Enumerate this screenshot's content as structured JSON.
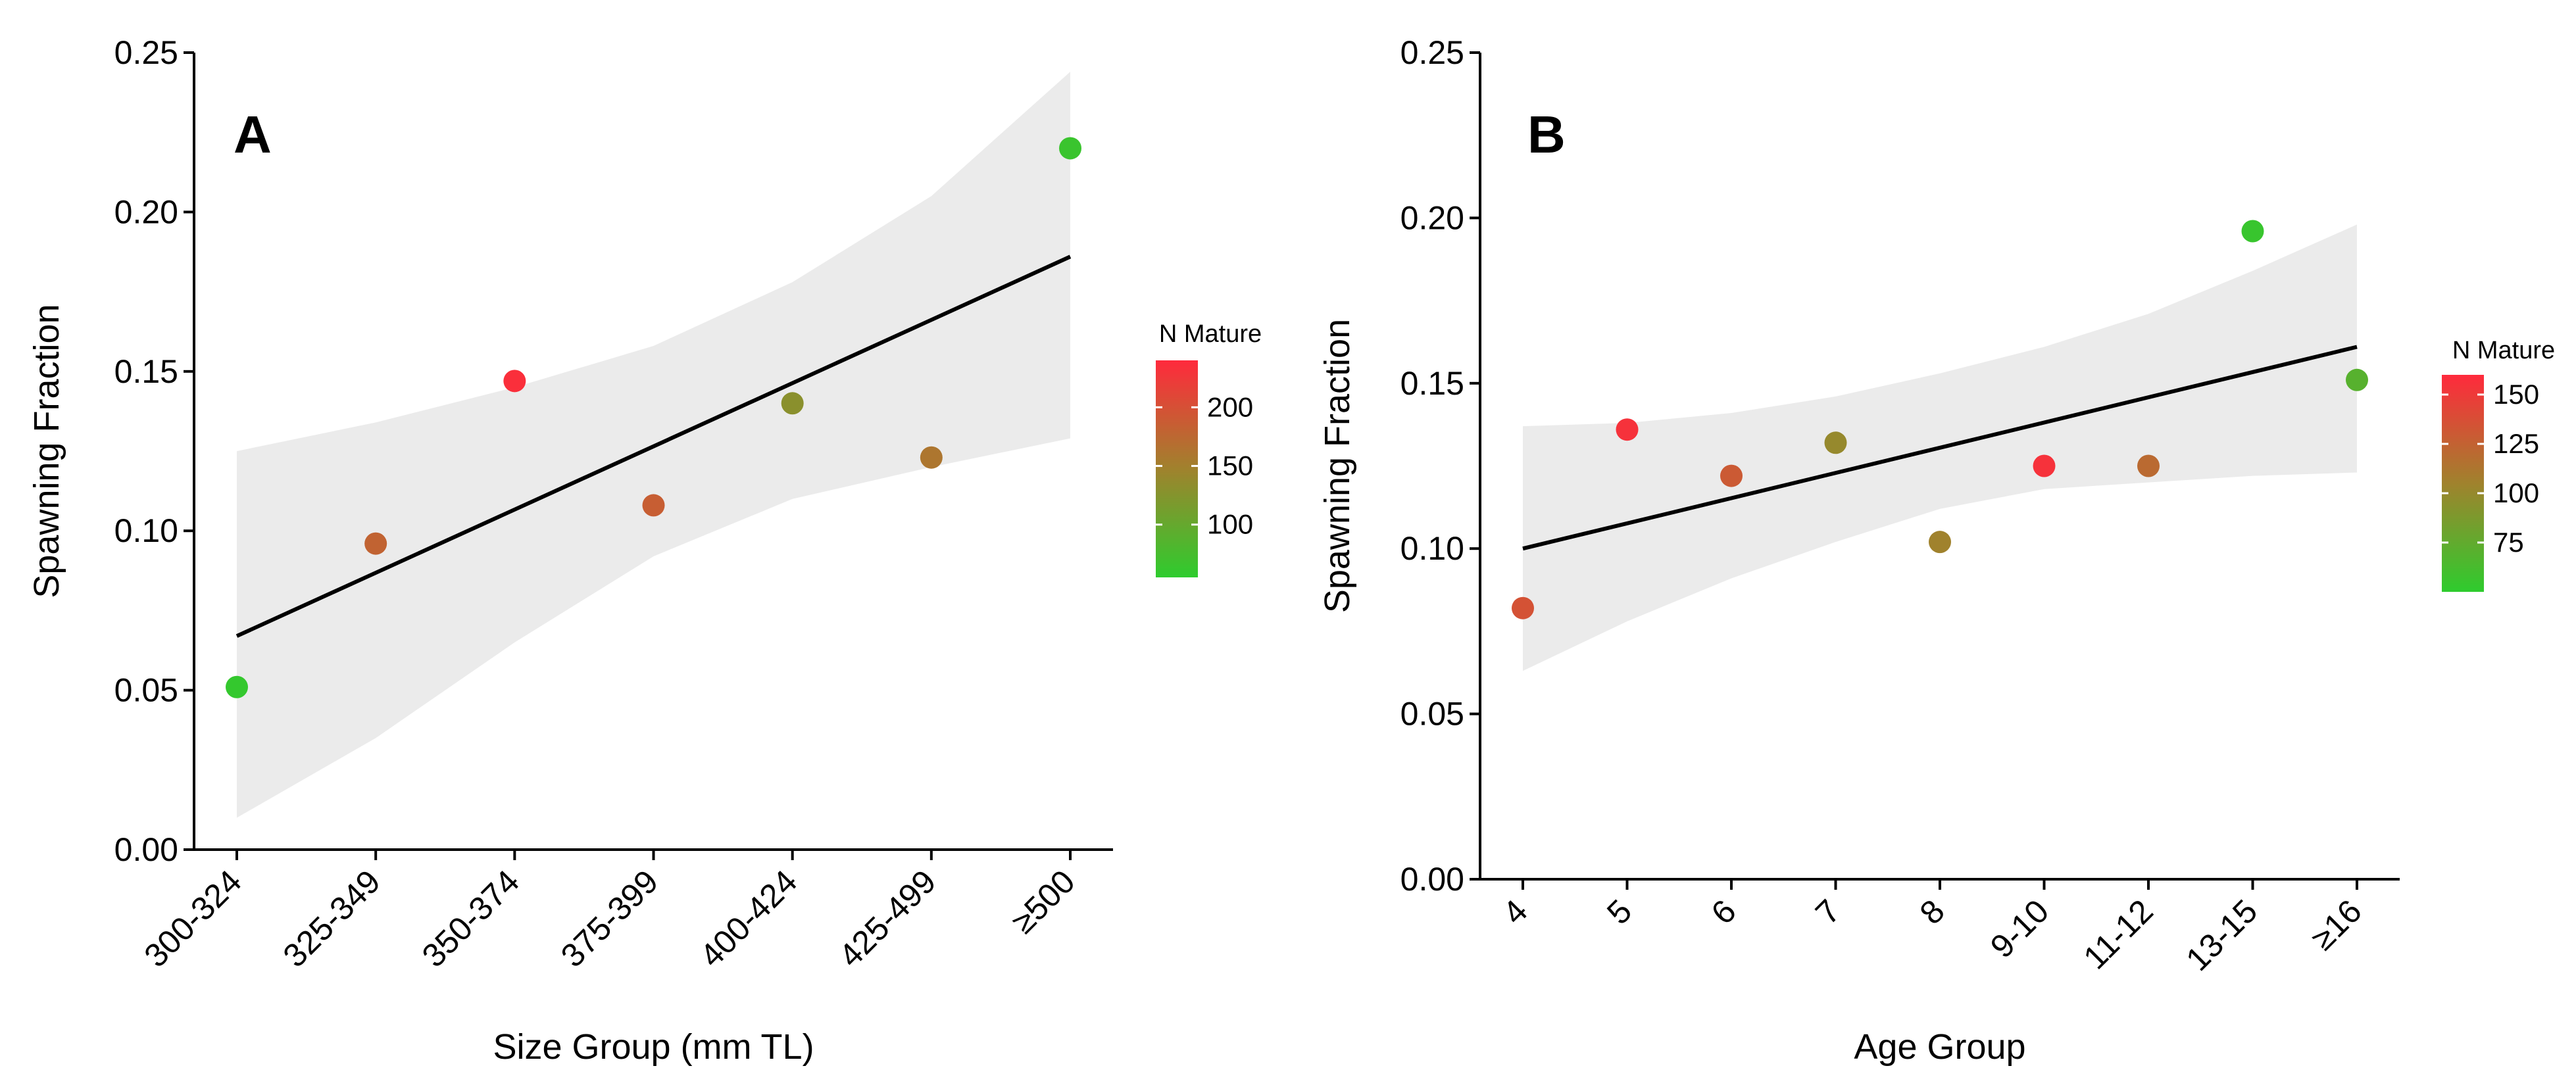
{
  "chart_data": [
    {
      "type": "scatter",
      "panel_label": "A",
      "xlabel": "Size Group (mm TL)",
      "ylabel": "Spawning Fraction",
      "categories": [
        "300-324",
        "325-349",
        "350-374",
        "375-399",
        "400-424",
        "425-499",
        "≥500"
      ],
      "values": [
        0.051,
        0.096,
        0.147,
        0.108,
        0.14,
        0.123,
        0.22
      ],
      "n_mature": [
        60,
        180,
        235,
        185,
        130,
        160,
        65
      ],
      "ylim": [
        0,
        0.25
      ],
      "yticks": [
        0.0,
        0.05,
        0.1,
        0.15,
        0.2,
        0.25
      ],
      "ytick_labels": [
        "0.00",
        "0.05",
        "0.10",
        "0.15",
        "0.20",
        "0.25"
      ],
      "fit": {
        "start": 0.067,
        "end": 0.186
      },
      "ci_lower": [
        0.01,
        0.035,
        0.065,
        0.092,
        0.11,
        0.12,
        0.129
      ],
      "ci_upper": [
        0.125,
        0.134,
        0.145,
        0.158,
        0.178,
        0.205,
        0.244
      ],
      "legend": {
        "title": "N Mature",
        "range": [
          55,
          240
        ],
        "ticks": [
          100,
          150,
          200
        ],
        "tick_labels": [
          "100",
          "150",
          "200"
        ],
        "color_low": "#2ecc2e",
        "color_mid": "#a0822d",
        "color_high": "#ff2a3c"
      },
      "grid": false
    },
    {
      "type": "scatter",
      "panel_label": "B",
      "xlabel": "Age Group",
      "ylabel": "Spawning Fraction",
      "categories": [
        "4",
        "5",
        "6",
        "7",
        "8",
        "9-10",
        "11-12",
        "13-15",
        "≥16"
      ],
      "values": [
        0.082,
        0.136,
        0.122,
        0.132,
        0.102,
        0.125,
        0.125,
        0.196,
        0.151
      ],
      "n_mature": [
        135,
        155,
        130,
        100,
        105,
        155,
        120,
        55,
        70
      ],
      "ylim": [
        0,
        0.25
      ],
      "yticks": [
        0.0,
        0.05,
        0.1,
        0.15,
        0.2,
        0.25
      ],
      "ytick_labels": [
        "0.00",
        "0.05",
        "0.10",
        "0.15",
        "0.20",
        "0.25"
      ],
      "fit": {
        "start": 0.1,
        "end": 0.161
      },
      "ci_lower": [
        0.063,
        0.078,
        0.091,
        0.102,
        0.112,
        0.118,
        0.12,
        0.122,
        0.123
      ],
      "ci_upper": [
        0.137,
        0.138,
        0.141,
        0.146,
        0.153,
        0.161,
        0.171,
        0.184,
        0.198
      ],
      "legend": {
        "title": "N Mature",
        "range": [
          50,
          160
        ],
        "ticks": [
          75,
          100,
          125,
          150
        ],
        "tick_labels": [
          "75",
          "100",
          "125",
          "150"
        ],
        "color_low": "#2ecc2e",
        "color_mid": "#a0822d",
        "color_high": "#ff2a3c"
      },
      "grid": false
    }
  ]
}
